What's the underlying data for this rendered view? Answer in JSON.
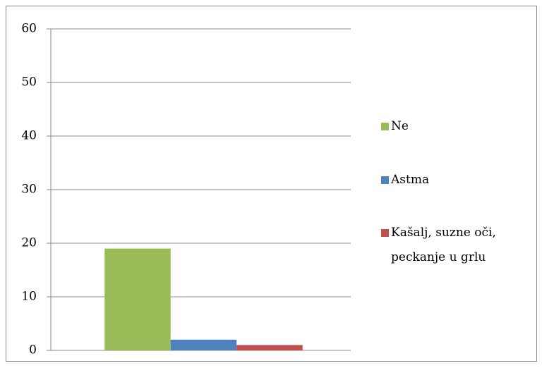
{
  "chart_data": {
    "type": "bar",
    "categories": [
      null
    ],
    "series": [
      {
        "name": "Ne",
        "color": "#9bbb59",
        "values": [
          19
        ]
      },
      {
        "name": "Astma",
        "color": "#4f81bd",
        "values": [
          2
        ]
      },
      {
        "name": "Kašalj, suzne oči, peckanje u grlu",
        "color": "#c0504d",
        "values": [
          1
        ]
      }
    ],
    "ylim": [
      0,
      60
    ],
    "yticks": [
      0,
      10,
      20,
      30,
      40,
      50,
      60
    ],
    "grid": true,
    "legend": "right"
  }
}
